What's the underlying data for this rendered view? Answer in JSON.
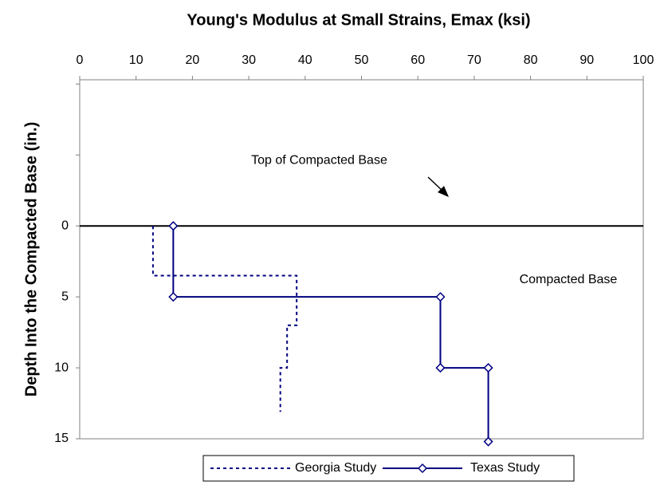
{
  "chart_data": {
    "type": "step_line",
    "title": "Young's Modulus at Small Strains, Emax (ksi)",
    "y_label": "Depth Into the Compacted Base (in.)",
    "xlim": [
      0,
      100
    ],
    "xticks": [
      0,
      10,
      20,
      30,
      40,
      50,
      60,
      70,
      80,
      90,
      100
    ],
    "ylim": [
      -10.3,
      15
    ],
    "y_inverted": true,
    "yticks": [
      {
        "value": -10,
        "label": null
      },
      {
        "value": -5,
        "label": null
      },
      0,
      5,
      10,
      15
    ],
    "series": [
      {
        "name": "Georgia Study",
        "color": "#000080",
        "dash": true,
        "marker": false,
        "x": [
          13,
          13,
          38.5,
          38.5,
          36.8,
          36.8,
          35.6,
          35.6
        ],
        "values": [
          0,
          3.5,
          3.5,
          7,
          7,
          10,
          10,
          13.1
        ]
      },
      {
        "name": "Texas Study",
        "color": "#000080",
        "dash": false,
        "marker": true,
        "x": [
          16.6,
          16.6,
          64,
          64,
          72.5,
          72.5
        ],
        "values": [
          0,
          5,
          5,
          10,
          10,
          15.2
        ]
      }
    ],
    "annotations": [
      {
        "text": "Top of Compacted Base",
        "x": 42.5,
        "y": -4.6
      },
      {
        "text": "Compacted Base",
        "x": 86.7,
        "y": 3.8
      }
    ],
    "reference_line": {
      "y": 0
    }
  }
}
